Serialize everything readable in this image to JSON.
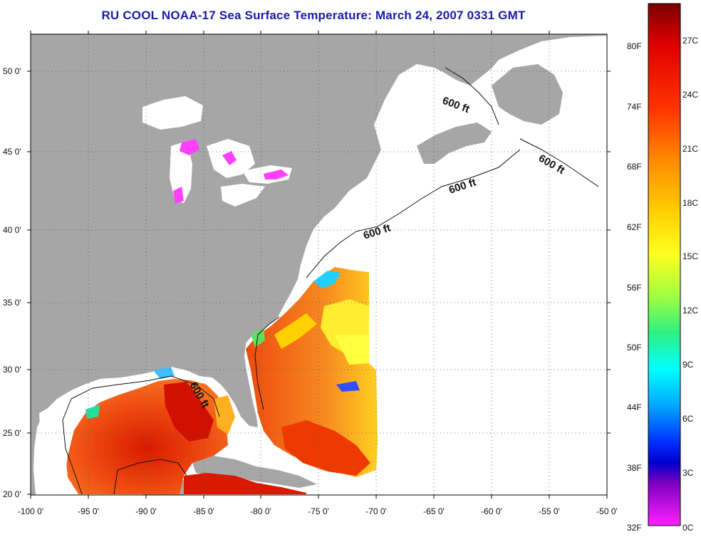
{
  "title": "RU COOL  NOAA-17  Sea Surface Temperature:  March 24, 2007 0331 GMT",
  "lat_labels": [
    "50 0'",
    "45 0'",
    "40 0'",
    "35 0'",
    "30 0'",
    "25 0'",
    "20 0'"
  ],
  "lon_labels": [
    "-100 0'",
    "-95 0'",
    "-90 0'",
    "-85 0'",
    "-80 0'",
    "-75 0'",
    "-70 0'",
    "-65 0'",
    "-60 0'",
    "-55 0'",
    "-50 0'"
  ],
  "isobath_labels": [
    "600 ft",
    "600 ft",
    "600 ft",
    "600 ft",
    "600 ft"
  ],
  "colorbar": {
    "f_labels": [
      "80F",
      "74F",
      "68F",
      "62F",
      "56F",
      "50F",
      "44F",
      "38F",
      "32F"
    ],
    "c_labels": [
      "27C",
      "24C",
      "21C",
      "18C",
      "15C",
      "12C",
      "9C",
      "6C",
      "3C",
      "0C"
    ]
  },
  "colors": {
    "land": "#a6a6a6",
    "nodata": "#ffffff",
    "title": "#1a1aa8"
  }
}
